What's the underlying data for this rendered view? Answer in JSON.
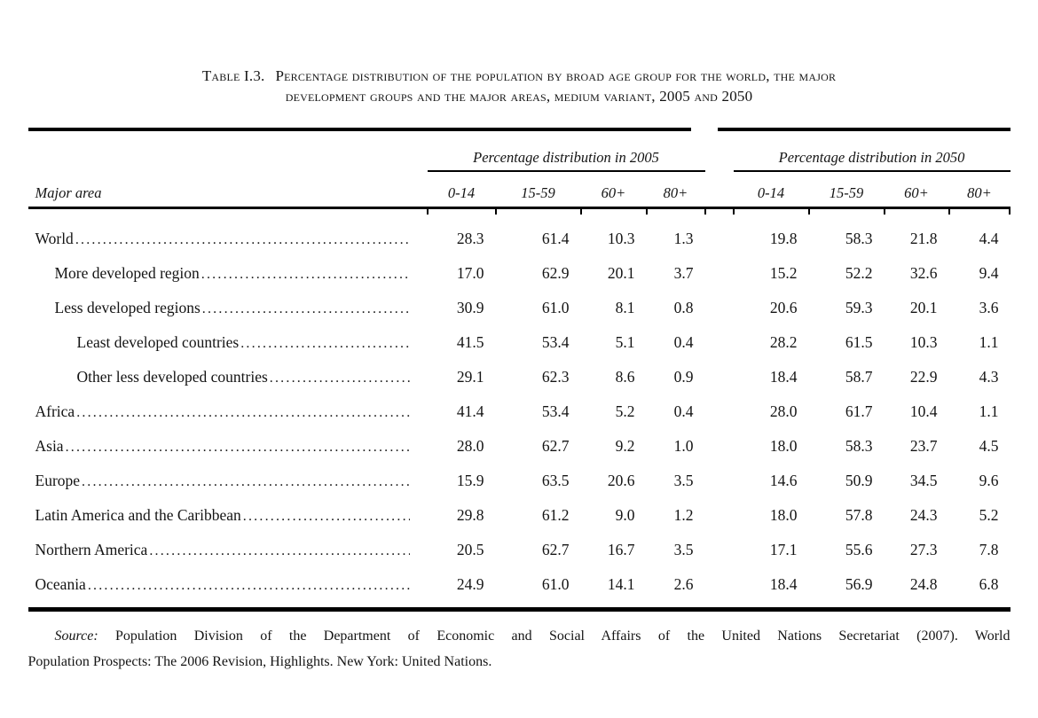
{
  "title": {
    "label": "Table I.3.",
    "line1_rest": "Percentage distribution of the population by broad age group for the world, the major",
    "line2": "development groups and the major areas, medium variant, 2005 and 2050"
  },
  "table": {
    "group_headers": [
      "Percentage distribution in 2005",
      "Percentage distribution in 2050"
    ],
    "row_header": "Major area",
    "age_columns": [
      "0-14",
      "15-59",
      "60+",
      "80+"
    ],
    "rows": [
      {
        "label": "World",
        "indent": 0,
        "v2005": [
          "28.3",
          "61.4",
          "10.3",
          "1.3"
        ],
        "v2050": [
          "19.8",
          "58.3",
          "21.8",
          "4.4"
        ]
      },
      {
        "label": "More developed region",
        "indent": 1,
        "v2005": [
          "17.0",
          "62.9",
          "20.1",
          "3.7"
        ],
        "v2050": [
          "15.2",
          "52.2",
          "32.6",
          "9.4"
        ]
      },
      {
        "label": "Less developed regions",
        "indent": 1,
        "v2005": [
          "30.9",
          "61.0",
          "8.1",
          "0.8"
        ],
        "v2050": [
          "20.6",
          "59.3",
          "20.1",
          "3.6"
        ]
      },
      {
        "label": "Least developed countries",
        "indent": 2,
        "v2005": [
          "41.5",
          "53.4",
          "5.1",
          "0.4"
        ],
        "v2050": [
          "28.2",
          "61.5",
          "10.3",
          "1.1"
        ]
      },
      {
        "label": "Other less developed countries",
        "indent": 2,
        "v2005": [
          "29.1",
          "62.3",
          "8.6",
          "0.9"
        ],
        "v2050": [
          "18.4",
          "58.7",
          "22.9",
          "4.3"
        ]
      },
      {
        "label": "Africa",
        "indent": 0,
        "v2005": [
          "41.4",
          "53.4",
          "5.2",
          "0.4"
        ],
        "v2050": [
          "28.0",
          "61.7",
          "10.4",
          "1.1"
        ]
      },
      {
        "label": "Asia",
        "indent": 0,
        "v2005": [
          "28.0",
          "62.7",
          "9.2",
          "1.0"
        ],
        "v2050": [
          "18.0",
          "58.3",
          "23.7",
          "4.5"
        ]
      },
      {
        "label": "Europe",
        "indent": 0,
        "v2005": [
          "15.9",
          "63.5",
          "20.6",
          "3.5"
        ],
        "v2050": [
          "14.6",
          "50.9",
          "34.5",
          "9.6"
        ]
      },
      {
        "label": "Latin America and the Caribbean",
        "indent": 0,
        "v2005": [
          "29.8",
          "61.2",
          "9.0",
          "1.2"
        ],
        "v2050": [
          "18.0",
          "57.8",
          "24.3",
          "5.2"
        ]
      },
      {
        "label": "Northern America",
        "indent": 0,
        "v2005": [
          "20.5",
          "62.7",
          "16.7",
          "3.5"
        ],
        "v2050": [
          "17.1",
          "55.6",
          "27.3",
          "7.8"
        ]
      },
      {
        "label": "Oceania",
        "indent": 0,
        "v2005": [
          "24.9",
          "61.0",
          "14.1",
          "2.6"
        ],
        "v2050": [
          "18.4",
          "56.9",
          "24.8",
          "6.8"
        ]
      }
    ]
  },
  "source": {
    "label": "Source:",
    "line1": "Population Division of the Department of Economic and Social Affairs of the United Nations Secretariat (2007). World",
    "line2": "Population Prospects: The 2006 Revision, Highlights. New York: United Nations."
  },
  "colors": {
    "background": "#ffffff",
    "text": "#141414",
    "rule": "#000000"
  }
}
